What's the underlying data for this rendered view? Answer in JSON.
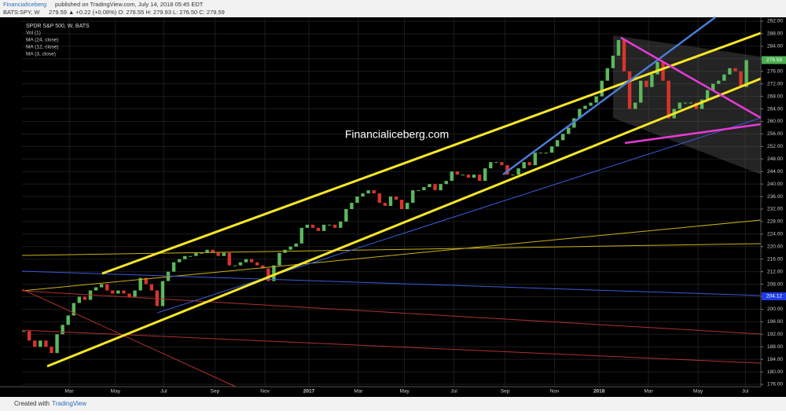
{
  "header": {
    "author": "FinancialIceberg",
    "published": "published on TradingView.com, July 14, 2018 05:45 EDT",
    "symbol": "BATS:SPY, W",
    "quote": "279.59 ▲ +0.22 (+0.08%) O: 276.55 H: 279.93 L: 276.50 C: 279.59"
  },
  "chart_data": {
    "type": "candlestick",
    "title": "SPDR S&P 500, W, BATS",
    "indicators": [
      "Vol (1)",
      "MA (24, close)",
      "MA (12, close)",
      "MA (3, close)"
    ],
    "watermark": "Financialiceberg.com",
    "up_color": "#5cb85c",
    "down_color": "#d9342b",
    "values": [
      193,
      190,
      188,
      190,
      188,
      186,
      192,
      195,
      198,
      202,
      204,
      203,
      206,
      207,
      208,
      206,
      205,
      206,
      205,
      204,
      206,
      210,
      208,
      206,
      201,
      209,
      212,
      215,
      216,
      217,
      217,
      218,
      218,
      219,
      218,
      217,
      218,
      214,
      214,
      215,
      216,
      215,
      214,
      213,
      209,
      214,
      218,
      219,
      220,
      221,
      226,
      227,
      226,
      225,
      227,
      227,
      226,
      228,
      232,
      234,
      236,
      237,
      238,
      237,
      234,
      233,
      236,
      235,
      232,
      234,
      238,
      238,
      239,
      240,
      238,
      240,
      241,
      244,
      243,
      243,
      242,
      243,
      241,
      245,
      247,
      247,
      246,
      243,
      243,
      245,
      247,
      246,
      250,
      250,
      250,
      252,
      254,
      256,
      258,
      261,
      264,
      265,
      266,
      268,
      273,
      277,
      281,
      286,
      276,
      264,
      266,
      273,
      271,
      275,
      279,
      273,
      261,
      264,
      266,
      266,
      266,
      264,
      267,
      270,
      272,
      273,
      275,
      277,
      276,
      271,
      279.59
    ],
    "xlim": [
      -0.3,
      132.6
    ],
    "xticks": [
      {
        "value": 8.2,
        "label": "Mar"
      },
      {
        "value": 16.5,
        "label": "May"
      },
      {
        "value": 25.2,
        "label": "Jul"
      },
      {
        "value": 34.4,
        "label": "Sep"
      },
      {
        "value": 43.4,
        "label": "Nov"
      },
      {
        "value": 51.3,
        "label": "2017"
      },
      {
        "value": 60.2,
        "label": "Mar"
      },
      {
        "value": 68.5,
        "label": "May"
      },
      {
        "value": 77.4,
        "label": "Jul"
      },
      {
        "value": 86.6,
        "label": "Sep"
      },
      {
        "value": 95.5,
        "label": "Nov"
      },
      {
        "value": 103.5,
        "label": "2018"
      },
      {
        "value": 112.4,
        "label": "Mar"
      },
      {
        "value": 121.3,
        "label": "May"
      },
      {
        "value": 129.8,
        "label": "Jul"
      }
    ],
    "ylim": [
      175.25,
      293.26
    ],
    "yticks": [
      {
        "value": 176,
        "label": "176.00"
      },
      {
        "value": 180,
        "label": "180.00"
      },
      {
        "value": 184,
        "label": "184.00"
      },
      {
        "value": 188,
        "label": "188.00"
      },
      {
        "value": 192,
        "label": "192.00"
      },
      {
        "value": 196,
        "label": "196.00"
      },
      {
        "value": 200,
        "label": "200.00"
      },
      {
        "value": 204,
        "label": "204.00"
      },
      {
        "value": 208,
        "label": "208.00"
      },
      {
        "value": 212,
        "label": "212.00"
      },
      {
        "value": 216,
        "label": "216.00"
      },
      {
        "value": 220,
        "label": "220.00"
      },
      {
        "value": 224,
        "label": "224.00"
      },
      {
        "value": 228,
        "label": "228.00"
      },
      {
        "value": 232,
        "label": "232.00"
      },
      {
        "value": 236,
        "label": "236.00"
      },
      {
        "value": 240,
        "label": "240.00"
      },
      {
        "value": 244,
        "label": "244.00"
      },
      {
        "value": 248,
        "label": "248.00"
      },
      {
        "value": 252,
        "label": "252.00"
      },
      {
        "value": 256,
        "label": "256.00"
      },
      {
        "value": 260,
        "label": "260.00"
      },
      {
        "value": 264,
        "label": "264.00"
      },
      {
        "value": 268,
        "label": "268.00"
      },
      {
        "value": 272,
        "label": "272.00"
      },
      {
        "value": 276,
        "label": "276.00"
      },
      {
        "value": 280,
        "label": "280.00"
      },
      {
        "value": 284,
        "label": "284.00"
      },
      {
        "value": 288,
        "label": "288.00"
      },
      {
        "value": 292,
        "label": "292.00"
      }
    ],
    "grid": true,
    "price_labels": [
      {
        "value": 279.59,
        "label": "279.59",
        "color": "#4caf50"
      },
      {
        "value": 204.12,
        "label": "204.12",
        "color": "#1e3ce8"
      }
    ]
  },
  "footer": {
    "created": "Created with",
    "brand": "TradingView"
  }
}
